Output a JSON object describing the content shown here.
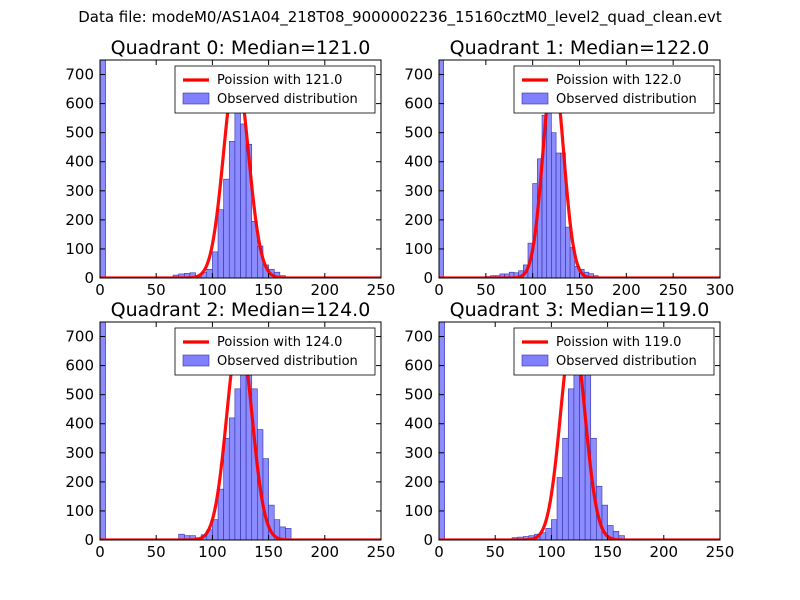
{
  "figure": {
    "suptitle": "Data file: modeM0/AS1A04_218T08_9000002236_15160cztM0_level2_quad_clean.evt"
  },
  "colors": {
    "fit": "#ff0000",
    "hist_fill": "#8080ff",
    "hist_edge": "#3333aa",
    "axis": "#000000"
  },
  "chart_data": [
    {
      "type": "bar",
      "title": "Quadrant 0: Median=121.0",
      "xlim": [
        0,
        250
      ],
      "ylim": [
        0,
        750
      ],
      "xticks": [
        0,
        50,
        100,
        150,
        200,
        250
      ],
      "yticks": [
        0,
        100,
        200,
        300,
        400,
        500,
        600,
        700
      ],
      "fit_label": "Poission with 121.0",
      "hist_label": "Observed distribution",
      "fit_mean": 121.0,
      "fit_peak": 715,
      "zero_bin_value": 760,
      "bin_width": 5,
      "bin_starts": [
        65,
        70,
        75,
        80,
        85,
        90,
        95,
        100,
        105,
        110,
        115,
        120,
        125,
        130,
        135,
        140,
        145,
        150,
        155,
        160
      ],
      "values": [
        10,
        14,
        16,
        18,
        8,
        20,
        30,
        90,
        235,
        340,
        470,
        650,
        530,
        460,
        195,
        110,
        45,
        30,
        20,
        8
      ]
    },
    {
      "type": "bar",
      "title": "Quadrant 1: Median=122.0",
      "xlim": [
        0,
        300
      ],
      "ylim": [
        0,
        750
      ],
      "xticks": [
        0,
        50,
        100,
        150,
        200,
        250,
        300
      ],
      "yticks": [
        0,
        100,
        200,
        300,
        400,
        500,
        600,
        700
      ],
      "fit_label": "Poission with 122.0",
      "hist_label": "Observed distribution",
      "fit_mean": 122.0,
      "fit_peak": 715,
      "zero_bin_value": 760,
      "bin_width": 5,
      "bin_starts": [
        50,
        55,
        60,
        65,
        70,
        75,
        80,
        85,
        90,
        95,
        100,
        105,
        110,
        115,
        120,
        125,
        130,
        135,
        140,
        145,
        150,
        155,
        160,
        165
      ],
      "values": [
        5,
        8,
        8,
        14,
        14,
        20,
        18,
        25,
        45,
        120,
        325,
        410,
        560,
        650,
        500,
        430,
        430,
        175,
        105,
        40,
        30,
        20,
        15,
        8
      ]
    },
    {
      "type": "bar",
      "title": "Quadrant 2: Median=124.0",
      "xlim": [
        0,
        250
      ],
      "ylim": [
        0,
        750
      ],
      "xticks": [
        0,
        50,
        100,
        150,
        200,
        250
      ],
      "yticks": [
        0,
        100,
        200,
        300,
        400,
        500,
        600,
        700
      ],
      "fit_label": "Poission with 124.0",
      "hist_label": "Observed distribution",
      "fit_mean": 124.0,
      "fit_peak": 715,
      "zero_bin_value": 770,
      "bin_width": 5,
      "bin_starts": [
        70,
        75,
        80,
        85,
        90,
        95,
        100,
        105,
        110,
        115,
        120,
        125,
        130,
        135,
        140,
        145,
        150,
        155,
        160,
        165
      ],
      "values": [
        20,
        15,
        15,
        8,
        18,
        35,
        70,
        175,
        350,
        420,
        520,
        620,
        680,
        520,
        380,
        280,
        120,
        70,
        45,
        40
      ]
    },
    {
      "type": "bar",
      "title": "Quadrant 3: Median=119.0",
      "xlim": [
        0,
        250
      ],
      "ylim": [
        0,
        750
      ],
      "xticks": [
        0,
        50,
        100,
        150,
        200,
        250
      ],
      "yticks": [
        0,
        100,
        200,
        300,
        400,
        500,
        600,
        700
      ],
      "fit_label": "Poission with 119.0",
      "hist_label": "Observed distribution",
      "fit_mean": 119.0,
      "fit_peak": 715,
      "zero_bin_value": 770,
      "bin_width": 5,
      "bin_starts": [
        65,
        70,
        75,
        80,
        85,
        90,
        95,
        100,
        105,
        110,
        115,
        120,
        125,
        130,
        135,
        140,
        145,
        150,
        155,
        160
      ],
      "values": [
        8,
        10,
        12,
        15,
        20,
        25,
        40,
        70,
        215,
        350,
        520,
        720,
        650,
        580,
        350,
        185,
        120,
        50,
        30,
        15
      ]
    }
  ]
}
